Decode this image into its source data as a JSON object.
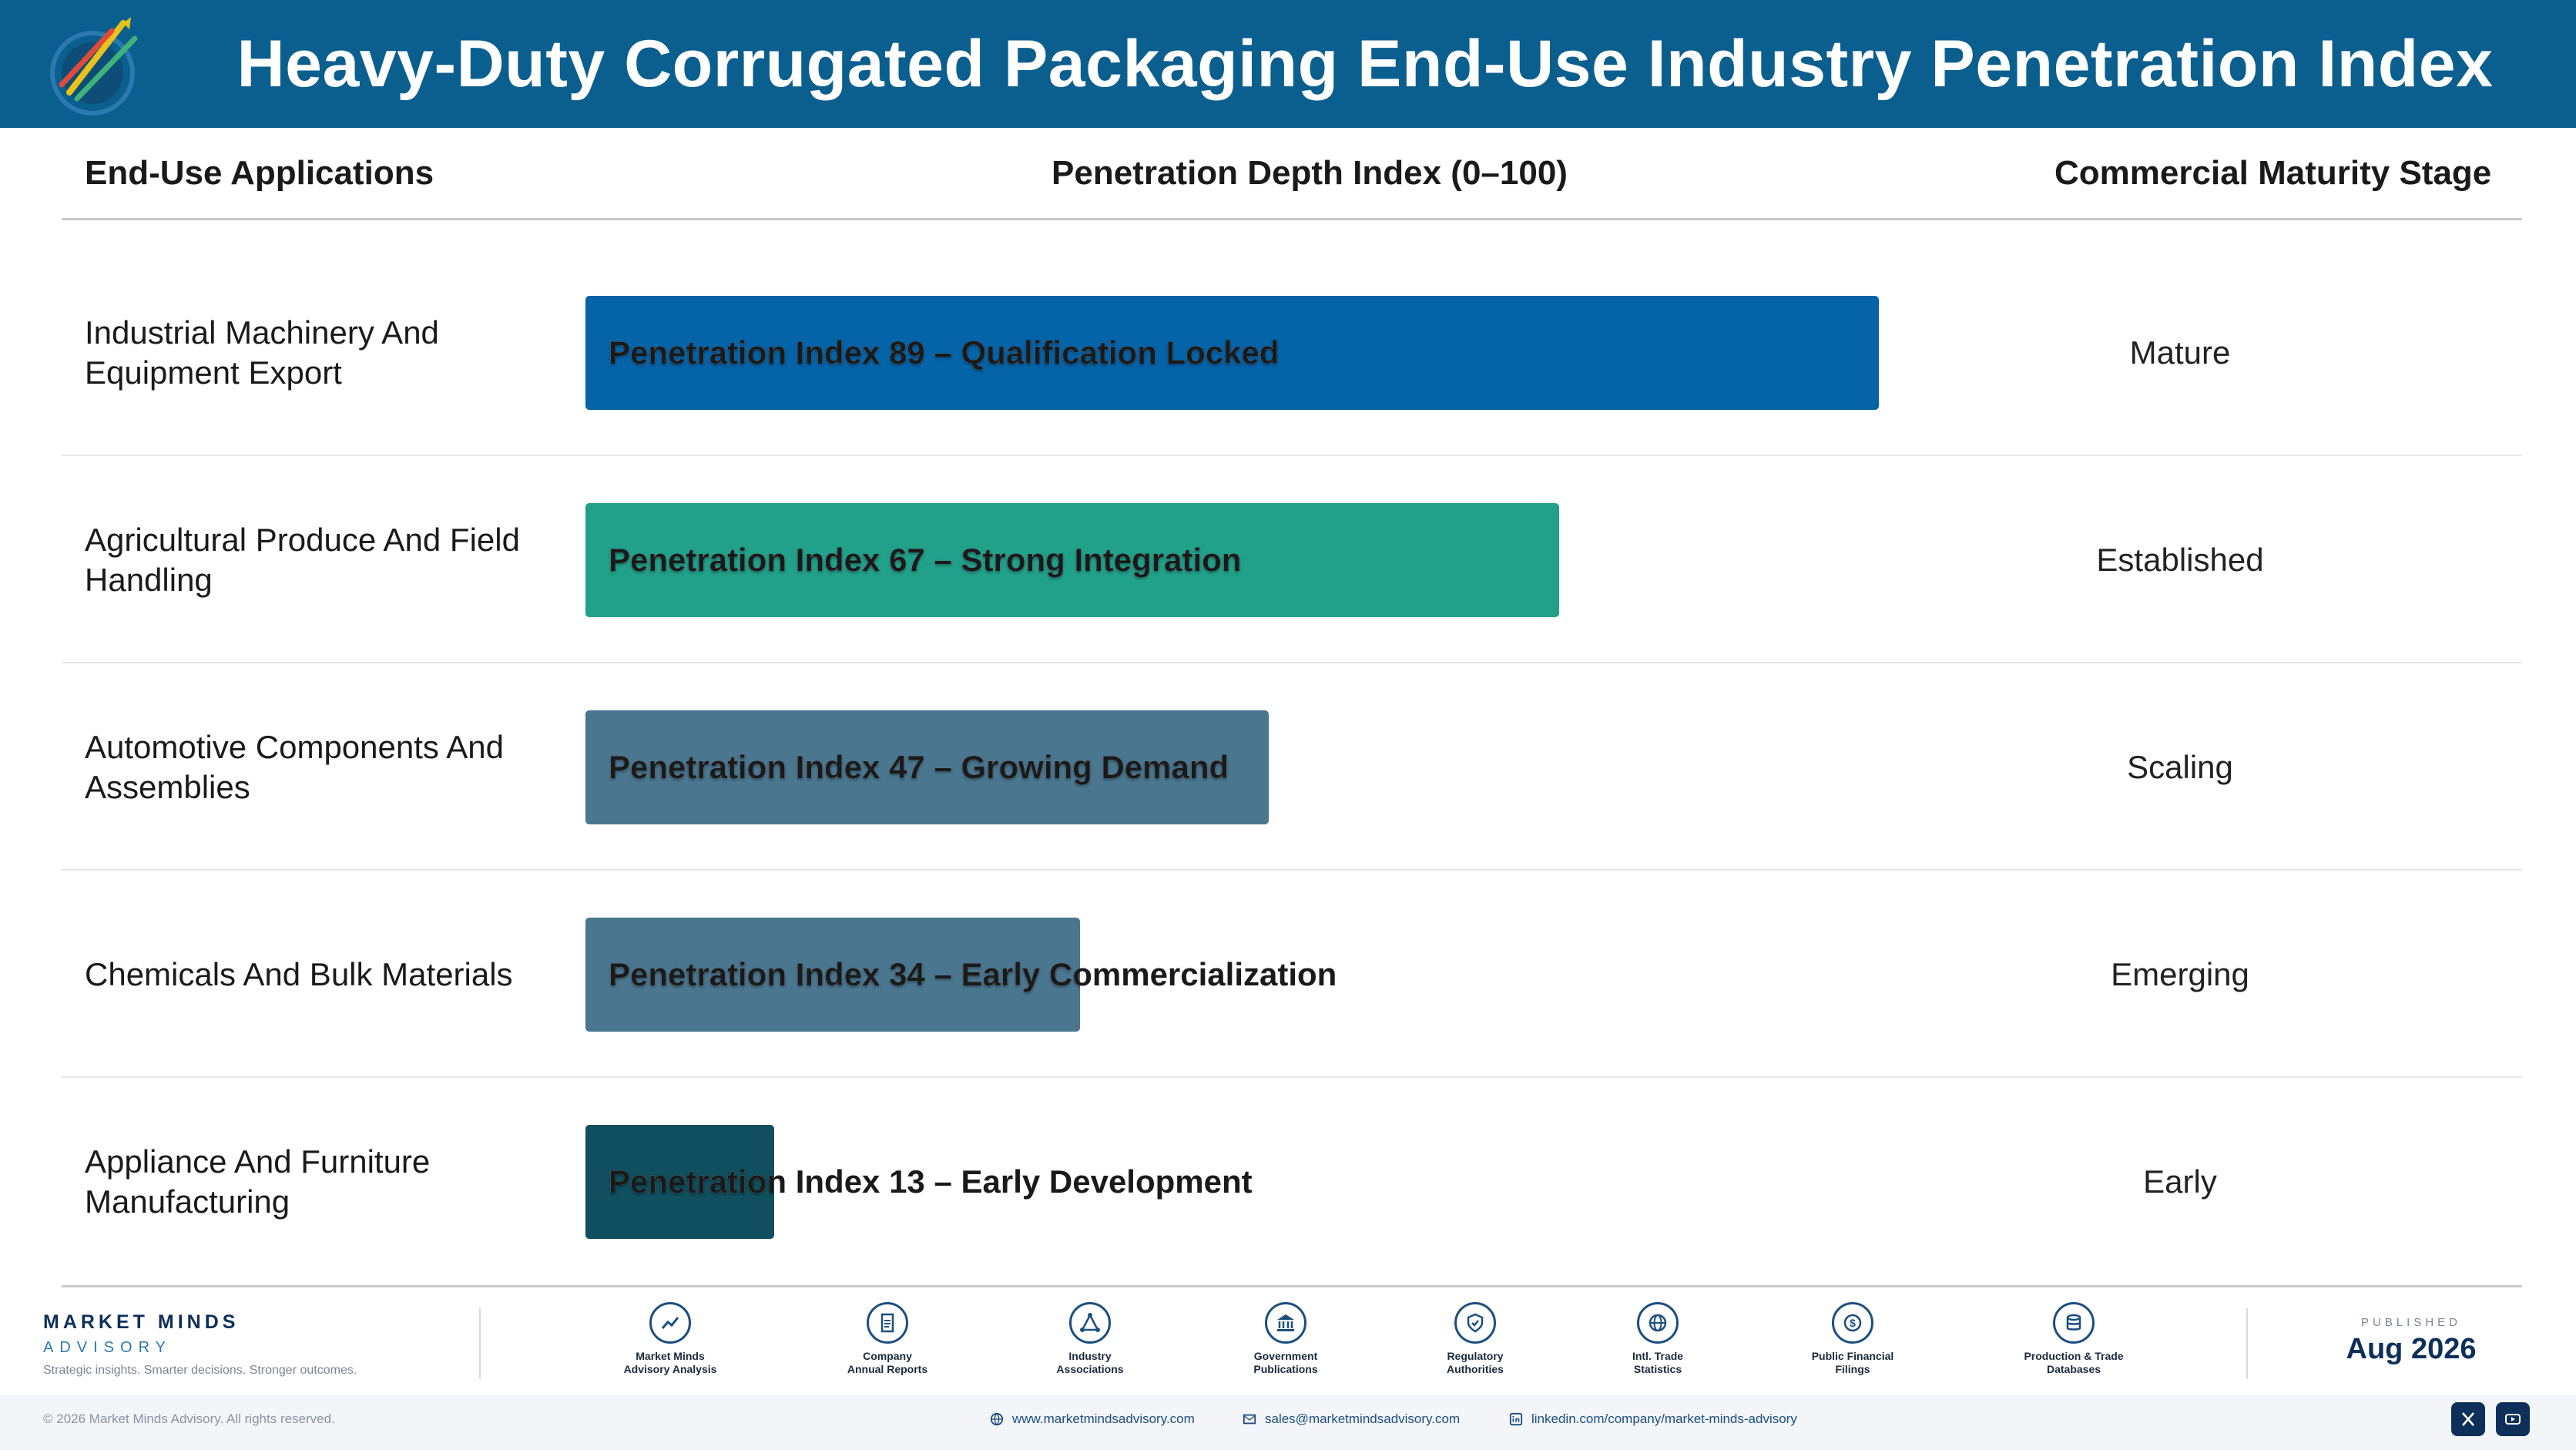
{
  "title": "Heavy-Duty Corrugated Packaging End-Use Industry Penetration Index",
  "columns": {
    "applications": "End-Use Applications",
    "index": "Penetration Depth Index (0–100)",
    "stage": "Commercial Maturity Stage"
  },
  "colors": {
    "header_bg": "#0b5f8e",
    "bar_89": "#0563a8",
    "bar_67": "#21a08a",
    "bar_47": "#4a7690",
    "bar_34": "#4a7690",
    "bar_13": "#0f4f5f"
  },
  "chart_data": {
    "type": "bar",
    "orientation": "horizontal",
    "title": "Heavy-Duty Corrugated Packaging End-Use Industry Penetration Index",
    "xlabel": "Penetration Depth Index (0–100)",
    "xlim": [
      0,
      100
    ],
    "grid": false,
    "categories": [
      "Industrial Machinery And Equipment Export",
      "Agricultural Produce And Field Handling",
      "Automotive Components And Assemblies",
      "Chemicals And Bulk Materials",
      "Appliance And Furniture Manufacturing"
    ],
    "values": [
      89,
      67,
      47,
      34,
      13
    ],
    "bar_labels": [
      "Penetration Index 89 – Qualification Locked",
      "Penetration Index 67 – Strong Integration",
      "Penetration Index 47 – Growing Demand",
      "Penetration Index 34 – Early Commercialization",
      "Penetration Index 13 – Early Development"
    ],
    "stages": [
      "Mature",
      "Established",
      "Scaling",
      "Emerging",
      "Early"
    ],
    "bar_colors": [
      "#0563a8",
      "#21a08a",
      "#4a7690",
      "#4a7690",
      "#0f4f5f"
    ]
  },
  "footer": {
    "brand_name": "MARKET MINDS",
    "brand_sub": "ADVISORY",
    "tagline": "Strategic insights. Smarter decisions. Stronger outcomes.",
    "sources": [
      {
        "icon": "chart-line-icon",
        "label": "Market Minds\nAdvisory Analysis"
      },
      {
        "icon": "document-icon",
        "label": "Company\nAnnual Reports"
      },
      {
        "icon": "network-icon",
        "label": "Industry\nAssociations"
      },
      {
        "icon": "government-building-icon",
        "label": "Government\nPublications"
      },
      {
        "icon": "shield-icon",
        "label": "Regulatory\nAuthorities"
      },
      {
        "icon": "globe-icon",
        "label": "Intl. Trade\nStatistics"
      },
      {
        "icon": "dollar-icon",
        "label": "Public Financial\nFilings"
      },
      {
        "icon": "database-icon",
        "label": "Production & Trade\nDatabases"
      }
    ],
    "published_label": "PUBLISHED",
    "published_date": "Aug 2026",
    "copyright": "© 2026 Market Minds Advisory. All rights reserved.",
    "website": "www.marketmindsadvisory.com",
    "email": "sales@marketmindsadvisory.com",
    "linkedin": "linkedin.com/company/market-minds-advisory"
  }
}
